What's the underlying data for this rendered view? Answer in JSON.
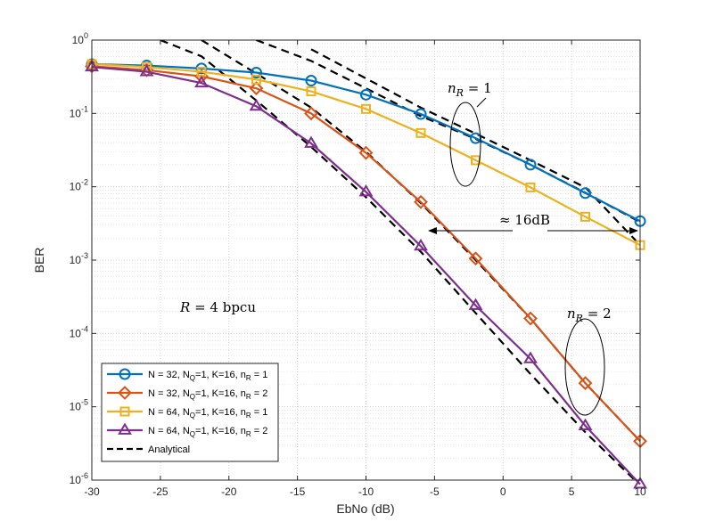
{
  "chart_data": {
    "type": "line",
    "xlabel": "EbNo (dB)",
    "ylabel": "BER",
    "xlim": [
      -30,
      10
    ],
    "ylim": [
      1e-06,
      1
    ],
    "yscale": "log",
    "grid": true,
    "x_ticks": [
      "-30",
      "-25",
      "-20",
      "-15",
      "-10",
      "-5",
      "0",
      "5",
      "10"
    ],
    "y_ticks": [
      {
        "base": "10",
        "exp": "0"
      },
      {
        "base": "10",
        "exp": "-1"
      },
      {
        "base": "10",
        "exp": "-2"
      },
      {
        "base": "10",
        "exp": "-3"
      },
      {
        "base": "10",
        "exp": "-4"
      },
      {
        "base": "10",
        "exp": "-5"
      },
      {
        "base": "10",
        "exp": "-6"
      }
    ],
    "x": [
      -30,
      -26,
      -22,
      -18,
      -14,
      -10,
      -6,
      -2,
      2,
      6,
      10
    ],
    "series": [
      {
        "name": "N = 32, N_Q=1, K=16, n_R = 1",
        "color": "#0072BD",
        "marker": "circle",
        "values": [
          0.47,
          0.45,
          0.41,
          0.36,
          0.28,
          0.18,
          0.098,
          0.046,
          0.02,
          0.0082,
          0.0034
        ]
      },
      {
        "name": "N = 32, N_Q=1, K=16, n_R = 2",
        "color": "#D95319",
        "marker": "diamond",
        "values": [
          0.44,
          0.39,
          0.32,
          0.22,
          0.1,
          0.029,
          0.0062,
          0.00105,
          0.00016,
          2.1e-05,
          3.4e-06
        ]
      },
      {
        "name": "N = 64, N_Q=1, K=16, n_R = 1",
        "color": "#EDB120",
        "marker": "square",
        "values": [
          0.47,
          0.43,
          0.37,
          0.29,
          0.2,
          0.115,
          0.054,
          0.023,
          0.0098,
          0.0039,
          0.0016
        ]
      },
      {
        "name": "N = 64, N_Q=1, K=16, n_R = 2",
        "color": "#7E2F8E",
        "marker": "triangle",
        "values": [
          0.43,
          0.37,
          0.26,
          0.125,
          0.039,
          0.0085,
          0.00155,
          0.00024,
          4.5e-05,
          5.5e-06,
          8.8e-07
        ]
      }
    ],
    "analytical": {
      "name": "Analytical",
      "color": "#000000",
      "style": "dashed",
      "curves": [
        {
          "x": [
            -18,
            -14,
            -10,
            -6,
            -2,
            2,
            6,
            10
          ],
          "values": [
            1.0,
            0.52,
            0.22,
            0.092,
            0.045,
            0.02,
            0.0083,
            0.0033
          ]
        },
        {
          "x": [
            -14,
            -10,
            -6,
            -2,
            2,
            6,
            10
          ],
          "values": [
            0.75,
            0.3,
            0.12,
            0.053,
            0.023,
            0.0098,
            0.0016
          ]
        },
        {
          "x": [
            -22,
            -18,
            -14,
            -10,
            -6,
            -2,
            2,
            6,
            10
          ],
          "values": [
            1.0,
            0.35,
            0.12,
            0.03,
            0.006,
            0.001,
            0.00016,
            2.1e-05,
            3.4e-06
          ]
        },
        {
          "x": [
            -25,
            -22,
            -18,
            -14,
            -10,
            -6,
            -2,
            2,
            6,
            10
          ],
          "values": [
            1.0,
            0.6,
            0.15,
            0.035,
            0.0072,
            0.0013,
            0.00019,
            2.8e-05,
            4.5e-06,
            8.5e-07
          ]
        }
      ]
    },
    "legend": {
      "position": "bottom-left",
      "entries": [
        {
          "prefix": "N = 32, N",
          "sub1": "Q",
          "mid": "=1, K=16, n",
          "sub2": "R",
          "suffix": " = 1"
        },
        {
          "prefix": "N = 32, N",
          "sub1": "Q",
          "mid": "=1, K=16,  n",
          "sub2": "R",
          "suffix": " = 2"
        },
        {
          "prefix": "N = 64, N",
          "sub1": "Q",
          "mid": "=1, K=16, n",
          "sub2": "R",
          "suffix": " = 1"
        },
        {
          "prefix": "N = 64, N",
          "sub1": "Q",
          "mid": "=1, K=16,  n",
          "sub2": "R",
          "suffix": " = 2"
        },
        {
          "prefix": "Analytical",
          "sub1": "",
          "mid": "",
          "sub2": "",
          "suffix": ""
        }
      ]
    },
    "annotations": {
      "nr1": {
        "pre": "n",
        "sub": "R",
        "post": " = 1"
      },
      "nr2": {
        "pre": "n",
        "sub": "R",
        "post": " = 2"
      },
      "gap": "≈ 16dB",
      "rate_pre": "R",
      "rate_post": " = 4 bpcu"
    }
  }
}
